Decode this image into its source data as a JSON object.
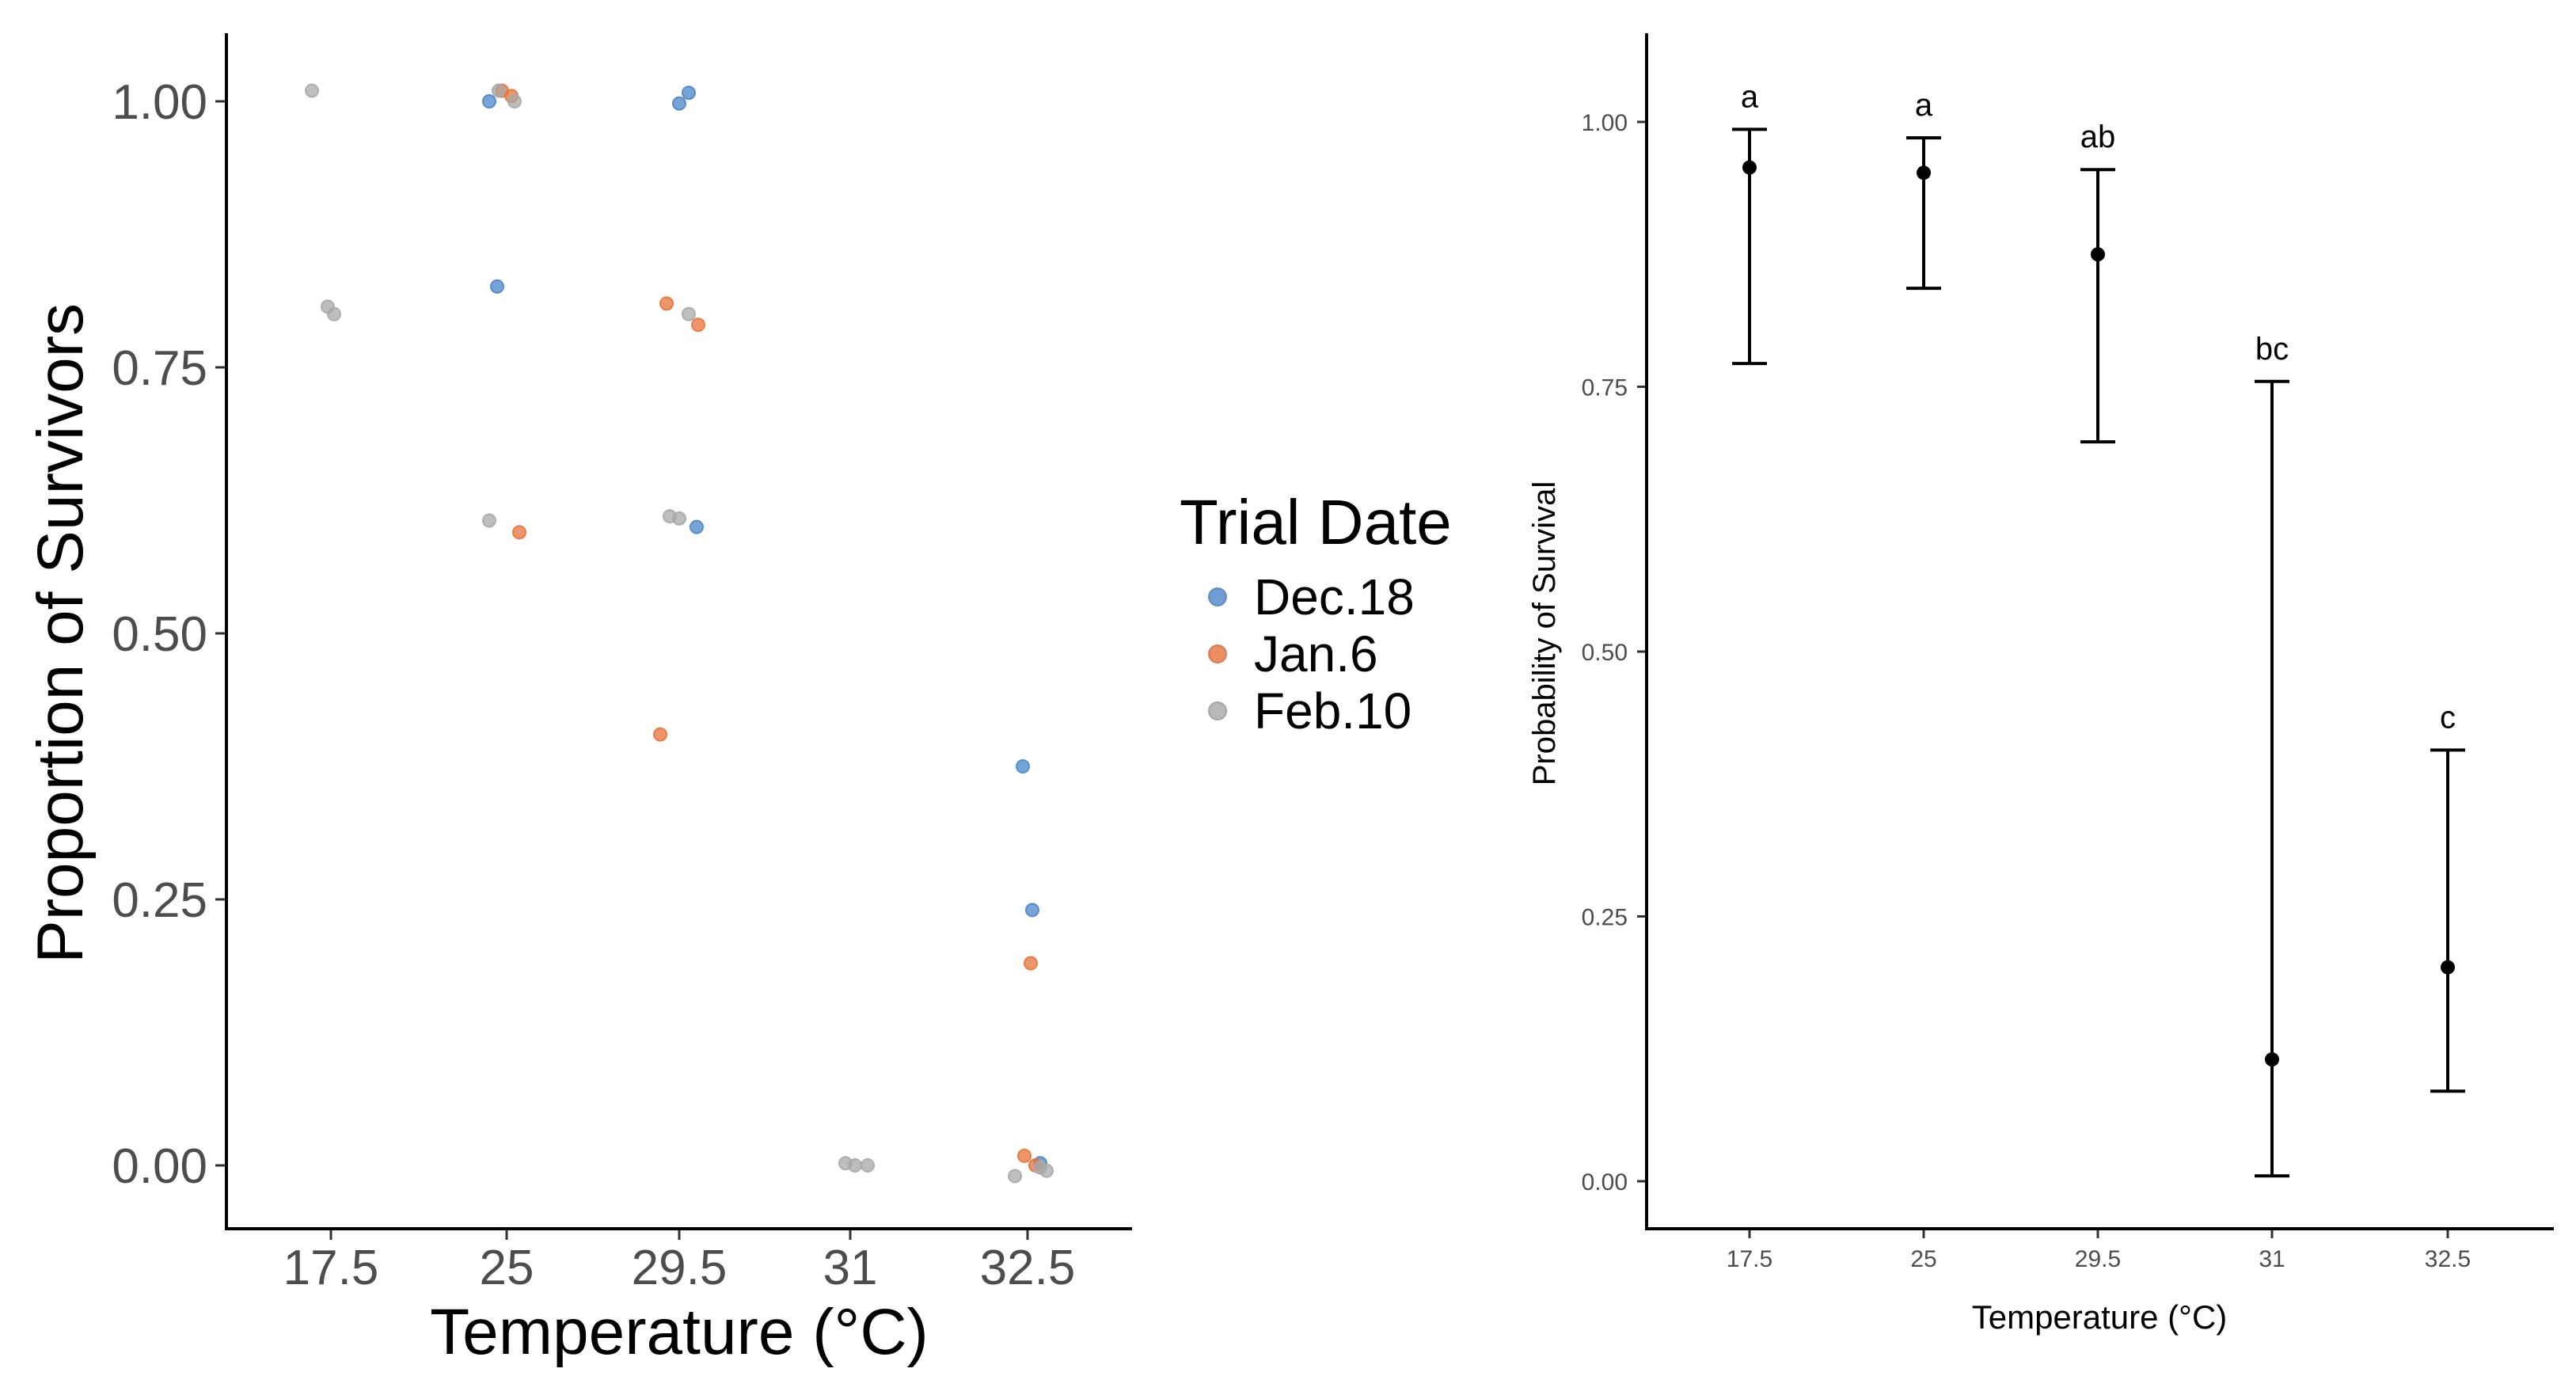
{
  "chart_data": [
    {
      "type": "scatter",
      "xlabel": "Temperature (°C)",
      "ylabel": "Proportion of Survivors",
      "categories": [
        "17.5",
        "25",
        "29.5",
        "31",
        "32.5"
      ],
      "ylim": [
        -0.06,
        1.06
      ],
      "yticks": [
        "0.00",
        "0.25",
        "0.50",
        "0.75",
        "1.00"
      ],
      "grid": false,
      "legend": {
        "title": "Trial Date",
        "position": "right",
        "entries": [
          {
            "name": "Dec.18",
            "color": "#4a86c8"
          },
          {
            "name": "Jan.6",
            "color": "#e8733a"
          },
          {
            "name": "Feb.10",
            "color": "#a8a8a8"
          }
        ]
      },
      "series": [
        {
          "name": "Dec.18",
          "color": "#4a86c8",
          "points": [
            {
              "x": "25",
              "y": 1.0
            },
            {
              "x": "25",
              "y": 0.826
            },
            {
              "x": "29.5",
              "y": 0.998
            },
            {
              "x": "29.5",
              "y": 1.008
            },
            {
              "x": "29.5",
              "y": 0.6
            },
            {
              "x": "32.5",
              "y": 0.375
            },
            {
              "x": "32.5",
              "y": 0.24
            },
            {
              "x": "32.5",
              "y": 0.002
            }
          ]
        },
        {
          "name": "Jan.6",
          "color": "#e8733a",
          "points": [
            {
              "x": "25",
              "y": 1.01
            },
            {
              "x": "25",
              "y": 1.005
            },
            {
              "x": "25",
              "y": 0.595
            },
            {
              "x": "29.5",
              "y": 0.81
            },
            {
              "x": "29.5",
              "y": 0.79
            },
            {
              "x": "29.5",
              "y": 0.405
            },
            {
              "x": "32.5",
              "y": 0.19
            },
            {
              "x": "32.5",
              "y": 0.009
            },
            {
              "x": "32.5",
              "y": 0.0
            }
          ]
        },
        {
          "name": "Feb.10",
          "color": "#a8a8a8",
          "points": [
            {
              "x": "17.5",
              "y": 1.01
            },
            {
              "x": "17.5",
              "y": 0.8
            },
            {
              "x": "17.5",
              "y": 0.807
            },
            {
              "x": "25",
              "y": 1.0
            },
            {
              "x": "25",
              "y": 1.01
            },
            {
              "x": "25",
              "y": 0.606
            },
            {
              "x": "29.5",
              "y": 0.61
            },
            {
              "x": "29.5",
              "y": 0.608
            },
            {
              "x": "29.5",
              "y": 0.8
            },
            {
              "x": "31",
              "y": 0.0
            },
            {
              "x": "31",
              "y": 0.002
            },
            {
              "x": "31",
              "y": 0.0
            },
            {
              "x": "32.5",
              "y": -0.002
            },
            {
              "x": "32.5",
              "y": -0.01
            },
            {
              "x": "32.5",
              "y": -0.005
            }
          ]
        }
      ]
    },
    {
      "type": "scatter",
      "subtype": "point-errorbar",
      "xlabel": "Temperature (°C)",
      "ylabel": "Probability of Survival",
      "categories": [
        "17.5",
        "25",
        "29.5",
        "31",
        "32.5"
      ],
      "ylim": [
        -0.045,
        1.08
      ],
      "yticks": [
        "0.00",
        "0.25",
        "0.50",
        "0.75",
        "1.00"
      ],
      "grid": false,
      "points": [
        {
          "x": "17.5",
          "y": 0.957,
          "lower": 0.772,
          "upper": 0.993,
          "label": "a"
        },
        {
          "x": "25",
          "y": 0.952,
          "lower": 0.843,
          "upper": 0.985,
          "label": "a"
        },
        {
          "x": "29.5",
          "y": 0.875,
          "lower": 0.698,
          "upper": 0.955,
          "label": "ab"
        },
        {
          "x": "31",
          "y": 0.115,
          "lower": 0.005,
          "upper": 0.755,
          "label": "bc"
        },
        {
          "x": "32.5",
          "y": 0.202,
          "lower": 0.085,
          "upper": 0.407,
          "label": "c"
        }
      ]
    }
  ]
}
